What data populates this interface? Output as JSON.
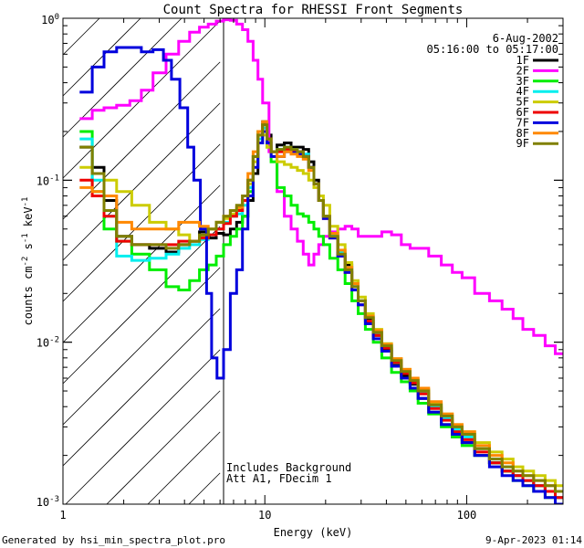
{
  "chart_data": {
    "type": "line",
    "title": "Count Spectra for RHESSI Front Segments",
    "xlabel": "Energy (keV)",
    "ylabel": "counts cm",
    "ylabel_exp1": "-2",
    "ylabel_mid": "s",
    "ylabel_exp2": "-1",
    "ylabel_end": "keV",
    "ylabel_exp3": "-1",
    "xscale": "log",
    "yscale": "log",
    "xlim": [
      1,
      300
    ],
    "ylim": [
      0.001,
      1
    ],
    "xtick_labels": [
      {
        "value": 1,
        "label": "1"
      },
      {
        "value": 10,
        "label": "10"
      },
      {
        "value": 100,
        "label": "100"
      }
    ],
    "ytick_labels": [
      {
        "value": 1,
        "base": "10",
        "exp": "0"
      },
      {
        "value": 0.1,
        "base": "10",
        "exp": "-1"
      },
      {
        "value": 0.01,
        "base": "10",
        "exp": "-2"
      },
      {
        "value": 0.001,
        "base": "10",
        "exp": "-3"
      }
    ],
    "shaded_region": {
      "x_min": 1,
      "x_max": 6,
      "style": "diagonal-hatch"
    },
    "date": "6-Aug-2002",
    "time_range": "05:16:00 to 05:17:00",
    "annotations": [
      "Includes Background",
      "Att A1, FDecim 1"
    ],
    "series": [
      {
        "name": "1F",
        "color": "#000000",
        "x": [
          1.3,
          1.5,
          1.7,
          2,
          2.4,
          3,
          3.5,
          4,
          4.5,
          5,
          5.5,
          6,
          6.5,
          7,
          7.5,
          8,
          8.5,
          9,
          9.5,
          10,
          10.5,
          11,
          12,
          13,
          14,
          15,
          16,
          17,
          18,
          19,
          20,
          22,
          24,
          26,
          28,
          30,
          33,
          36,
          40,
          45,
          50,
          55,
          60,
          70,
          80,
          90,
          100,
          120,
          140,
          160,
          180,
          200,
          230,
          260,
          290
        ],
        "y": [
          0.16,
          0.12,
          0.075,
          0.045,
          0.04,
          0.038,
          0.036,
          0.04,
          0.042,
          0.048,
          0.044,
          0.047,
          0.046,
          0.05,
          0.055,
          0.06,
          0.075,
          0.11,
          0.17,
          0.23,
          0.19,
          0.15,
          0.165,
          0.17,
          0.16,
          0.16,
          0.155,
          0.13,
          0.1,
          0.075,
          0.06,
          0.045,
          0.035,
          0.03,
          0.022,
          0.018,
          0.014,
          0.011,
          0.009,
          0.0072,
          0.0062,
          0.0055,
          0.0045,
          0.0037,
          0.0031,
          0.0026,
          0.0024,
          0.002,
          0.0018,
          0.0016,
          0.0015,
          0.0014,
          0.0013,
          0.0012,
          0.0011
        ]
      },
      {
        "name": "2F",
        "color": "#ff00ff",
        "x": [
          1.3,
          1.5,
          1.7,
          2,
          2.3,
          2.6,
          3,
          3.5,
          4,
          4.5,
          5,
          5.5,
          6,
          6.5,
          7,
          7.5,
          8,
          8.5,
          9,
          9.5,
          10,
          11,
          12,
          13,
          14,
          15,
          16,
          17,
          18,
          19,
          20,
          22,
          24,
          26,
          28,
          30,
          33,
          36,
          40,
          45,
          50,
          55,
          60,
          70,
          80,
          90,
          100,
          120,
          140,
          160,
          180,
          200,
          230,
          260,
          290
        ],
        "y": [
          0.24,
          0.27,
          0.28,
          0.29,
          0.31,
          0.36,
          0.46,
          0.6,
          0.72,
          0.82,
          0.88,
          0.92,
          0.96,
          0.98,
          0.97,
          0.92,
          0.85,
          0.72,
          0.55,
          0.42,
          0.3,
          0.15,
          0.085,
          0.06,
          0.05,
          0.042,
          0.035,
          0.03,
          0.035,
          0.04,
          0.045,
          0.048,
          0.05,
          0.052,
          0.05,
          0.045,
          0.045,
          0.045,
          0.048,
          0.046,
          0.04,
          0.038,
          0.038,
          0.034,
          0.03,
          0.027,
          0.025,
          0.02,
          0.018,
          0.016,
          0.014,
          0.012,
          0.011,
          0.0095,
          0.0085
        ]
      },
      {
        "name": "3F",
        "color": "#00ee00",
        "x": [
          1.3,
          1.5,
          1.7,
          2,
          2.4,
          3,
          3.5,
          4,
          4.5,
          5,
          5.5,
          6,
          6.5,
          7,
          7.5,
          8,
          8.5,
          9,
          9.5,
          10,
          10.5,
          11,
          12,
          13,
          14,
          15,
          16,
          17,
          18,
          19,
          20,
          22,
          24,
          26,
          28,
          30,
          33,
          36,
          40,
          45,
          50,
          55,
          60,
          70,
          80,
          90,
          100,
          120,
          140,
          160,
          180,
          200,
          230,
          260,
          290
        ],
        "y": [
          0.2,
          0.085,
          0.05,
          0.042,
          0.035,
          0.028,
          0.022,
          0.021,
          0.024,
          0.028,
          0.03,
          0.034,
          0.04,
          0.045,
          0.05,
          0.06,
          0.085,
          0.14,
          0.2,
          0.22,
          0.16,
          0.13,
          0.09,
          0.08,
          0.07,
          0.062,
          0.06,
          0.055,
          0.05,
          0.045,
          0.04,
          0.033,
          0.028,
          0.023,
          0.018,
          0.015,
          0.012,
          0.01,
          0.008,
          0.0065,
          0.0057,
          0.005,
          0.0042,
          0.0036,
          0.003,
          0.0026,
          0.0023,
          0.002,
          0.0018,
          0.0016,
          0.0014,
          0.0013,
          0.0012,
          0.0011,
          0.001
        ]
      },
      {
        "name": "4F",
        "color": "#00eeee",
        "x": [
          1.3,
          1.5,
          1.7,
          2,
          2.4,
          3,
          3.5,
          4,
          4.5,
          5,
          5.5,
          6,
          6.5,
          7,
          7.5,
          8,
          8.5,
          9,
          9.5,
          10,
          10.5,
          11,
          12,
          13,
          14,
          15,
          16,
          17,
          18,
          19,
          20,
          22,
          24,
          26,
          28,
          30,
          33,
          36,
          40,
          45,
          50,
          55,
          60,
          70,
          80,
          90,
          100,
          120,
          140,
          160,
          180,
          200,
          230,
          260,
          290
        ],
        "y": [
          0.18,
          0.1,
          0.06,
          0.034,
          0.032,
          0.033,
          0.035,
          0.038,
          0.04,
          0.043,
          0.046,
          0.05,
          0.055,
          0.06,
          0.062,
          0.07,
          0.09,
          0.13,
          0.18,
          0.21,
          0.17,
          0.15,
          0.155,
          0.16,
          0.155,
          0.15,
          0.145,
          0.12,
          0.095,
          0.075,
          0.06,
          0.046,
          0.036,
          0.029,
          0.022,
          0.018,
          0.0145,
          0.0115,
          0.0095,
          0.0077,
          0.0066,
          0.0058,
          0.0049,
          0.004,
          0.0034,
          0.0029,
          0.0026,
          0.0022,
          0.0019,
          0.0017,
          0.0015,
          0.0014,
          0.0013,
          0.0012,
          0.0011
        ]
      },
      {
        "name": "5F",
        "color": "#cccc00",
        "x": [
          1.3,
          1.5,
          1.7,
          2,
          2.4,
          3,
          3.5,
          4,
          4.5,
          5,
          5.5,
          6,
          6.5,
          7,
          7.5,
          8,
          8.5,
          9,
          9.5,
          10,
          10.5,
          11,
          12,
          13,
          14,
          15,
          16,
          17,
          18,
          19,
          20,
          22,
          24,
          26,
          28,
          30,
          33,
          36,
          40,
          45,
          50,
          55,
          60,
          70,
          80,
          90,
          100,
          120,
          140,
          160,
          180,
          200,
          230,
          260,
          290
        ],
        "y": [
          0.12,
          0.11,
          0.1,
          0.085,
          0.07,
          0.055,
          0.05,
          0.046,
          0.042,
          0.045,
          0.05,
          0.055,
          0.058,
          0.062,
          0.066,
          0.075,
          0.095,
          0.13,
          0.17,
          0.19,
          0.16,
          0.14,
          0.13,
          0.125,
          0.12,
          0.115,
          0.11,
          0.1,
          0.09,
          0.08,
          0.07,
          0.052,
          0.04,
          0.031,
          0.024,
          0.019,
          0.015,
          0.012,
          0.0098,
          0.0079,
          0.0068,
          0.0059,
          0.0051,
          0.0042,
          0.0036,
          0.0031,
          0.0028,
          0.0024,
          0.0021,
          0.0019,
          0.0017,
          0.0016,
          0.0015,
          0.0014,
          0.0013
        ]
      },
      {
        "name": "6F",
        "color": "#ee0000",
        "x": [
          1.3,
          1.5,
          1.7,
          2,
          2.4,
          3,
          3.5,
          4,
          4.5,
          5,
          5.5,
          6,
          6.5,
          7,
          7.5,
          8,
          8.5,
          9,
          9.5,
          10,
          10.5,
          11,
          12,
          13,
          14,
          15,
          16,
          17,
          18,
          19,
          20,
          22,
          24,
          26,
          28,
          30,
          33,
          36,
          40,
          45,
          50,
          55,
          60,
          70,
          80,
          90,
          100,
          120,
          140,
          160,
          180,
          200,
          230,
          260,
          290
        ],
        "y": [
          0.1,
          0.08,
          0.06,
          0.042,
          0.04,
          0.04,
          0.04,
          0.042,
          0.042,
          0.044,
          0.046,
          0.05,
          0.054,
          0.06,
          0.065,
          0.075,
          0.1,
          0.14,
          0.19,
          0.22,
          0.18,
          0.15,
          0.15,
          0.155,
          0.15,
          0.15,
          0.14,
          0.12,
          0.095,
          0.075,
          0.058,
          0.044,
          0.034,
          0.027,
          0.021,
          0.017,
          0.0135,
          0.011,
          0.0092,
          0.0075,
          0.0064,
          0.0056,
          0.0048,
          0.0039,
          0.0033,
          0.0028,
          0.0025,
          0.0021,
          0.0018,
          0.0016,
          0.0015,
          0.0014,
          0.0013,
          0.0012,
          0.0011
        ]
      },
      {
        "name": "7F",
        "color": "#0000dd",
        "x": [
          1.3,
          1.5,
          1.7,
          2,
          2.3,
          2.6,
          3,
          3.3,
          3.6,
          4,
          4.3,
          4.6,
          5,
          5.3,
          5.6,
          6,
          6.5,
          7,
          7.5,
          8,
          8.5,
          9,
          9.5,
          10,
          10.5,
          11,
          12,
          13,
          14,
          15,
          16,
          17,
          18,
          19,
          20,
          22,
          24,
          26,
          28,
          30,
          33,
          36,
          40,
          45,
          50,
          55,
          60,
          70,
          80,
          90,
          100,
          120,
          140,
          160,
          180,
          200,
          230,
          260,
          290
        ],
        "y": [
          0.35,
          0.5,
          0.62,
          0.66,
          0.66,
          0.62,
          0.64,
          0.55,
          0.42,
          0.28,
          0.16,
          0.1,
          0.05,
          0.02,
          0.008,
          0.006,
          0.009,
          0.02,
          0.028,
          0.05,
          0.08,
          0.12,
          0.17,
          0.2,
          0.17,
          0.14,
          0.14,
          0.15,
          0.148,
          0.145,
          0.14,
          0.12,
          0.095,
          0.075,
          0.058,
          0.044,
          0.034,
          0.027,
          0.021,
          0.017,
          0.013,
          0.0105,
          0.0088,
          0.0071,
          0.006,
          0.0052,
          0.0045,
          0.0037,
          0.0031,
          0.0027,
          0.0024,
          0.002,
          0.0017,
          0.0015,
          0.0014,
          0.0013,
          0.0012,
          0.0011,
          0.001
        ]
      },
      {
        "name": "8F",
        "color": "#ff8800",
        "x": [
          1.3,
          1.5,
          1.7,
          2,
          2.4,
          3,
          3.5,
          4,
          4.5,
          5,
          5.5,
          6,
          6.5,
          7,
          7.5,
          8,
          8.5,
          9,
          9.5,
          10,
          10.5,
          11,
          12,
          13,
          14,
          15,
          16,
          17,
          18,
          19,
          20,
          22,
          24,
          26,
          28,
          30,
          33,
          36,
          40,
          45,
          50,
          55,
          60,
          70,
          80,
          90,
          100,
          120,
          140,
          160,
          180,
          200,
          230,
          260,
          290
        ],
        "y": [
          0.09,
          0.085,
          0.08,
          0.055,
          0.05,
          0.05,
          0.05,
          0.055,
          0.055,
          0.052,
          0.05,
          0.055,
          0.06,
          0.065,
          0.068,
          0.08,
          0.11,
          0.15,
          0.2,
          0.23,
          0.18,
          0.15,
          0.14,
          0.15,
          0.145,
          0.14,
          0.135,
          0.115,
          0.095,
          0.075,
          0.06,
          0.047,
          0.037,
          0.029,
          0.023,
          0.018,
          0.0145,
          0.0118,
          0.0097,
          0.0079,
          0.0068,
          0.006,
          0.0052,
          0.0043,
          0.0036,
          0.0031,
          0.0028,
          0.0023,
          0.002,
          0.0018,
          0.0016,
          0.0015,
          0.0014,
          0.0013,
          0.0012
        ]
      },
      {
        "name": "9F",
        "color": "#808000",
        "x": [
          1.3,
          1.5,
          1.7,
          2,
          2.4,
          3,
          3.5,
          4,
          4.5,
          5,
          5.5,
          6,
          6.5,
          7,
          7.5,
          8,
          8.5,
          9,
          9.5,
          10,
          10.5,
          11,
          12,
          13,
          14,
          15,
          16,
          17,
          18,
          19,
          20,
          22,
          24,
          26,
          28,
          30,
          33,
          36,
          40,
          45,
          50,
          55,
          60,
          70,
          80,
          90,
          100,
          120,
          140,
          160,
          180,
          200,
          230,
          260,
          290
        ],
        "y": [
          0.16,
          0.11,
          0.065,
          0.045,
          0.04,
          0.04,
          0.038,
          0.04,
          0.042,
          0.046,
          0.05,
          0.055,
          0.06,
          0.065,
          0.07,
          0.08,
          0.1,
          0.14,
          0.19,
          0.22,
          0.18,
          0.15,
          0.155,
          0.16,
          0.155,
          0.15,
          0.14,
          0.12,
          0.095,
          0.075,
          0.06,
          0.045,
          0.035,
          0.028,
          0.022,
          0.018,
          0.0142,
          0.0115,
          0.0095,
          0.0077,
          0.0066,
          0.0058,
          0.005,
          0.0041,
          0.0035,
          0.003,
          0.0027,
          0.0022,
          0.0019,
          0.0017,
          0.0016,
          0.0015,
          0.0014,
          0.0013,
          0.0012
        ]
      }
    ]
  },
  "footer": {
    "left": "Generated by hsi_min_spectra_plot.pro",
    "right": "9-Apr-2023 01:14"
  }
}
